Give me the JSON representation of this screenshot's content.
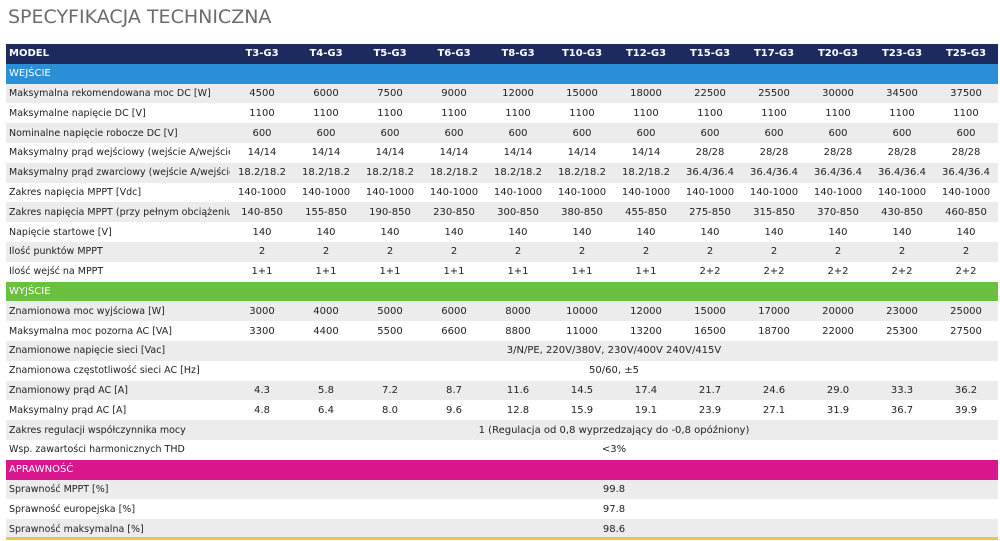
{
  "header": {
    "title": "SPECYFIKACJA TECHNICZNA"
  },
  "table": {
    "columns": [
      "MODEL",
      "T3-G3",
      "T4-G3",
      "T5-G3",
      "T6-G3",
      "T8-G3",
      "T10-G3",
      "T12-G3",
      "T15-G3",
      "T17-G3",
      "T20-G3",
      "T23-G3",
      "T25-G3"
    ],
    "sections": [
      {
        "title": "WEJŚCIE",
        "color": "#2b8fd8",
        "rows": [
          {
            "label": "Maksymalna rekomendowana moc DC [W]",
            "values": [
              "4500",
              "6000",
              "7500",
              "9000",
              "12000",
              "15000",
              "18000",
              "22500",
              "25500",
              "30000",
              "34500",
              "37500"
            ]
          },
          {
            "label": "Maksymalne napięcie DC [V]",
            "values": [
              "1100",
              "1100",
              "1100",
              "1100",
              "1100",
              "1100",
              "1100",
              "1100",
              "1100",
              "1100",
              "1100",
              "1100"
            ]
          },
          {
            "label": "Nominalne napięcie robocze DC [V]",
            "values": [
              "600",
              "600",
              "600",
              "600",
              "600",
              "600",
              "600",
              "600",
              "600",
              "600",
              "600",
              "600"
            ]
          },
          {
            "label": "Maksymalny prąd wejściowy (wejście A/wejście B) [A]",
            "values": [
              "14/14",
              "14/14",
              "14/14",
              "14/14",
              "14/14",
              "14/14",
              "14/14",
              "28/28",
              "28/28",
              "28/28",
              "28/28",
              "28/28"
            ]
          },
          {
            "label": "Maksymalny prąd zwarciowy (wejście A/wejście B) [A]",
            "values": [
              "18.2/18.2",
              "18.2/18.2",
              "18.2/18.2",
              "18.2/18.2",
              "18.2/18.2",
              "18.2/18.2",
              "18.2/18.2",
              "36.4/36.4",
              "36.4/36.4",
              "36.4/36.4",
              "36.4/36.4",
              "36.4/36.4"
            ]
          },
          {
            "label": "Zakres napięcia MPPT [Vdc]",
            "values": [
              "140-1000",
              "140-1000",
              "140-1000",
              "140-1000",
              "140-1000",
              "140-1000",
              "140-1000",
              "140-1000",
              "140-1000",
              "140-1000",
              "140-1000",
              "140-1000"
            ]
          },
          {
            "label": "Zakres napięcia MPPT (przy pełnym obciążeniu) [Vdc]",
            "values": [
              "140-850",
              "155-850",
              "190-850",
              "230-850",
              "300-850",
              "380-850",
              "455-850",
              "275-850",
              "315-850",
              "370-850",
              "430-850",
              "460-850"
            ]
          },
          {
            "label": "Napięcie startowe [V]",
            "values": [
              "140",
              "140",
              "140",
              "140",
              "140",
              "140",
              "140",
              "140",
              "140",
              "140",
              "140",
              "140"
            ]
          },
          {
            "label": "Ilość punktów MPPT",
            "values": [
              "2",
              "2",
              "2",
              "2",
              "2",
              "2",
              "2",
              "2",
              "2",
              "2",
              "2",
              "2"
            ]
          },
          {
            "label": "Ilość wejść na MPPT",
            "values": [
              "1+1",
              "1+1",
              "1+1",
              "1+1",
              "1+1",
              "1+1",
              "1+1",
              "2+2",
              "2+2",
              "2+2",
              "2+2",
              "2+2"
            ]
          }
        ]
      },
      {
        "title": "WYJŚCIE",
        "color": "#6cc03f",
        "rows": [
          {
            "label": "Znamionowa moc wyjściowa [W]",
            "values": [
              "3000",
              "4000",
              "5000",
              "6000",
              "8000",
              "10000",
              "12000",
              "15000",
              "17000",
              "20000",
              "23000",
              "25000"
            ]
          },
          {
            "label": "Maksymalna moc pozorna AC [VA]",
            "values": [
              "3300",
              "4400",
              "5500",
              "6600",
              "8800",
              "11000",
              "13200",
              "16500",
              "18700",
              "22000",
              "25300",
              "27500"
            ]
          },
          {
            "label": "Znamionowe napięcie sieci [Vac]",
            "values": [
              "3/N/PE, 220V/380V, 230V/400V 240V/415V"
            ]
          },
          {
            "label": "Znamionowa częstotliwość sieci AC [Hz]",
            "values": [
              "50/60, ±5"
            ]
          },
          {
            "label": "Znamionowy prąd AC [A]",
            "values": [
              "4.3",
              "5.8",
              "7.2",
              "8.7",
              "11.6",
              "14.5",
              "17.4",
              "21.7",
              "24.6",
              "29.0",
              "33.3",
              "36.2"
            ]
          },
          {
            "label": "Maksymalny prąd AC [A]",
            "values": [
              "4.8",
              "6.4",
              "8.0",
              "9.6",
              "12.8",
              "15.9",
              "19.1",
              "23.9",
              "27.1",
              "31.9",
              "36.7",
              "39.9"
            ]
          },
          {
            "label": "Zakres regulacji współczynnika mocy",
            "values": [
              "1 (Regulacja od 0,8 wyprzedzający do -0,8 opóźniony)"
            ]
          },
          {
            "label": "Wsp. zawartości harmonicznych THD",
            "values": [
              "<3%"
            ]
          }
        ]
      },
      {
        "title": "APRAWNOŚĆ",
        "color": "#d9168b",
        "rows": [
          {
            "label": "Sprawność MPPT [%]",
            "values": [
              "99.8"
            ]
          },
          {
            "label": "Sprawność europejska [%]",
            "values": [
              "97.8"
            ]
          },
          {
            "label": "Sprawność maksymalna [%]",
            "values": [
              "98.6"
            ]
          }
        ]
      }
    ]
  }
}
